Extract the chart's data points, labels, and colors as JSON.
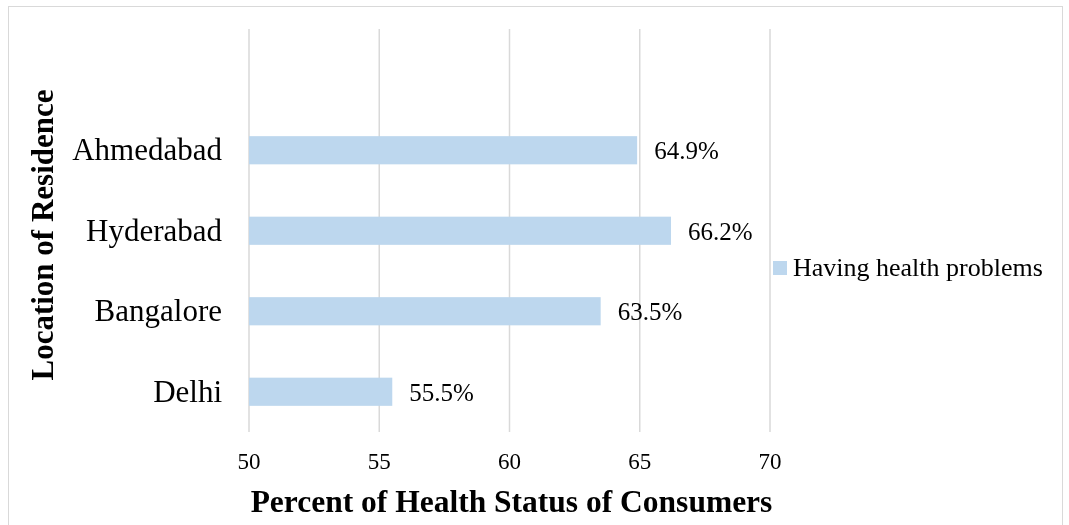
{
  "chart_data": {
    "type": "bar",
    "orientation": "horizontal",
    "xlabel": "Percent of Health Status of Consumers",
    "ylabel": "Location of Residence",
    "categories": [
      "Ahmedabad",
      "Hyderabad",
      "Bangalore",
      "Delhi"
    ],
    "series": [
      {
        "name": "Having health problems",
        "color": "#bdd7ee",
        "values": [
          64.9,
          66.2,
          63.5,
          55.5
        ],
        "value_labels": [
          "64.9%",
          "66.2%",
          "63.5%",
          "55.5%"
        ]
      }
    ],
    "xlim": [
      50,
      70
    ],
    "xticks": [
      50,
      55,
      60,
      65,
      70
    ],
    "grid": "x",
    "legend": "right"
  }
}
